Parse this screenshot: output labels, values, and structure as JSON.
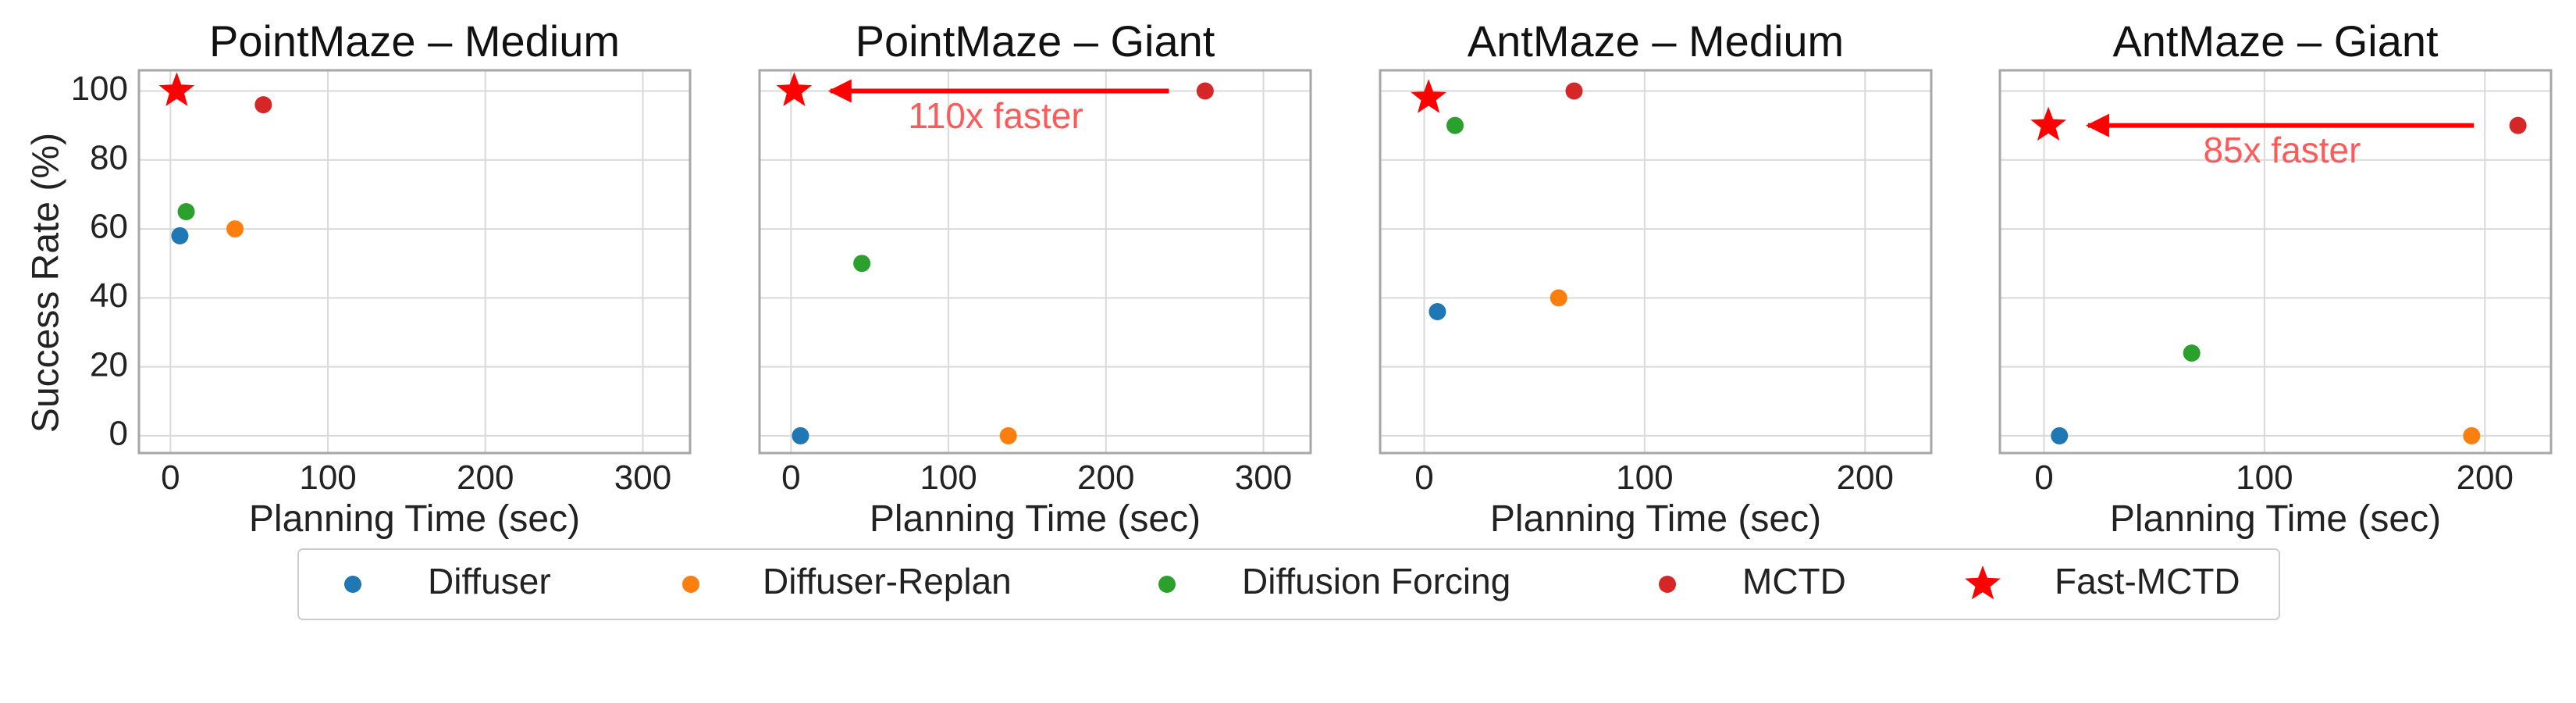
{
  "ylabel": "Success Rate (%)",
  "xlabel": "Planning Time (sec)",
  "colors": {
    "Diffuser": "#1f77b4",
    "Diffuser-Replan": "#ff7f0e",
    "Diffusion Forcing": "#2ca02c",
    "MCTD": "#d62728",
    "Fast-MCTD": "#ff0000",
    "annotation": "#ff5a5a"
  },
  "legend": [
    {
      "label": "Diffuser",
      "marker": "circle"
    },
    {
      "label": "Diffuser-Replan",
      "marker": "circle"
    },
    {
      "label": "Diffusion Forcing",
      "marker": "circle"
    },
    {
      "label": "MCTD",
      "marker": "circle"
    },
    {
      "label": "Fast-MCTD",
      "marker": "star"
    }
  ],
  "chart_data": [
    {
      "type": "scatter",
      "title": "PointMaze – Medium",
      "xlim": [
        -20,
        330
      ],
      "ylim": [
        -5,
        106
      ],
      "xticks": [
        0,
        100,
        200,
        300
      ],
      "yticks": [
        0,
        20,
        40,
        60,
        80,
        100
      ],
      "grid": true,
      "points": [
        {
          "series": "Diffuser",
          "x": 6,
          "y": 58
        },
        {
          "series": "Diffuser-Replan",
          "x": 41,
          "y": 60
        },
        {
          "series": "Diffusion Forcing",
          "x": 10,
          "y": 65
        },
        {
          "series": "MCTD",
          "x": 59,
          "y": 96
        },
        {
          "series": "Fast-MCTD",
          "x": 4,
          "y": 100
        }
      ]
    },
    {
      "type": "scatter",
      "title": "PointMaze – Giant",
      "xlim": [
        -20,
        330
      ],
      "ylim": [
        -5,
        106
      ],
      "xticks": [
        0,
        100,
        200,
        300
      ],
      "yticks": [
        0,
        20,
        40,
        60,
        80,
        100
      ],
      "grid": true,
      "points": [
        {
          "series": "Diffuser",
          "x": 6,
          "y": 0
        },
        {
          "series": "Diffuser-Replan",
          "x": 138,
          "y": 0
        },
        {
          "series": "Diffusion Forcing",
          "x": 45,
          "y": 50
        },
        {
          "series": "MCTD",
          "x": 263,
          "y": 100
        },
        {
          "series": "Fast-MCTD",
          "x": 2,
          "y": 100
        }
      ],
      "arrow": {
        "from": [
          240,
          100
        ],
        "to": [
          25,
          100
        ]
      },
      "annotation": {
        "text": "110x faster",
        "x": 130,
        "y": 92
      }
    },
    {
      "type": "scatter",
      "title": "AntMaze – Medium",
      "xlim": [
        -20,
        230
      ],
      "ylim": [
        -5,
        106
      ],
      "xticks": [
        0,
        100,
        200
      ],
      "yticks": [
        0,
        20,
        40,
        60,
        80,
        100
      ],
      "grid": true,
      "points": [
        {
          "series": "Diffuser",
          "x": 6,
          "y": 36
        },
        {
          "series": "Diffuser-Replan",
          "x": 61,
          "y": 40
        },
        {
          "series": "Diffusion Forcing",
          "x": 14,
          "y": 90
        },
        {
          "series": "MCTD",
          "x": 68,
          "y": 100
        },
        {
          "series": "Fast-MCTD",
          "x": 2,
          "y": 98
        }
      ]
    },
    {
      "type": "scatter",
      "title": "AntMaze – Giant",
      "xlim": [
        -20,
        230
      ],
      "ylim": [
        -5,
        106
      ],
      "xticks": [
        0,
        100,
        200
      ],
      "yticks": [
        0,
        20,
        40,
        60,
        80,
        100
      ],
      "grid": true,
      "points": [
        {
          "series": "Diffuser",
          "x": 7,
          "y": 0
        },
        {
          "series": "Diffuser-Replan",
          "x": 194,
          "y": 0
        },
        {
          "series": "Diffusion Forcing",
          "x": 67,
          "y": 24
        },
        {
          "series": "MCTD",
          "x": 215,
          "y": 90
        },
        {
          "series": "Fast-MCTD",
          "x": 2,
          "y": 90
        }
      ],
      "arrow": {
        "from": [
          195,
          90
        ],
        "to": [
          20,
          90
        ]
      },
      "annotation": {
        "text": "85x faster",
        "x": 108,
        "y": 82
      }
    }
  ]
}
